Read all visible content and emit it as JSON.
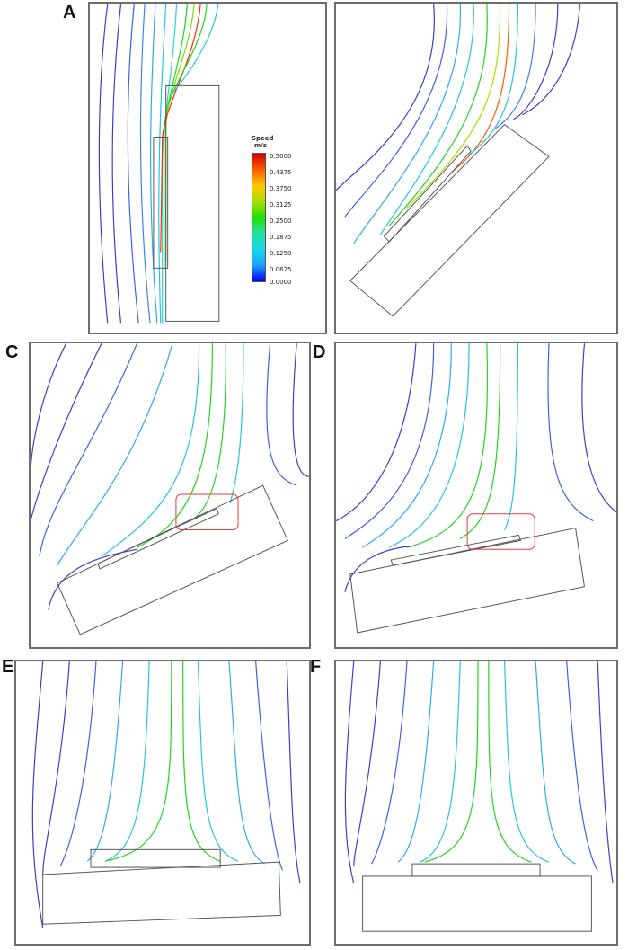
{
  "panels": [
    {
      "id": "A",
      "label": "A",
      "angle_deg": 90
    },
    {
      "id": "B",
      "label": "B",
      "angle_deg": 45
    },
    {
      "id": "C",
      "label": "C",
      "angle_deg": 25
    },
    {
      "id": "D",
      "label": "D",
      "angle_deg": 15
    },
    {
      "id": "E",
      "label": "E",
      "angle_deg": 0
    },
    {
      "id": "F",
      "label": "F",
      "angle_deg": 0
    }
  ],
  "legend": {
    "title": "Speed",
    "unit": "m/s",
    "ticks": [
      "0.5000",
      "0.4375",
      "0.3750",
      "0.3125",
      "0.2500",
      "0.1875",
      "0.1250",
      "0.0625",
      "0.0000"
    ],
    "colors": [
      "#d10000",
      "#ff5a00",
      "#ffc800",
      "#a8e000",
      "#1fe000",
      "#22e0a0",
      "#16d8e6",
      "#1aa0ff",
      "#0000ff"
    ]
  },
  "colors": {
    "slow": "#2b2bd6",
    "medium": "#22c3e6",
    "fast": "#1fd41f",
    "fastest": "#ff2a00",
    "border": "#6d6d6d",
    "highlight": "#e23a3a"
  }
}
